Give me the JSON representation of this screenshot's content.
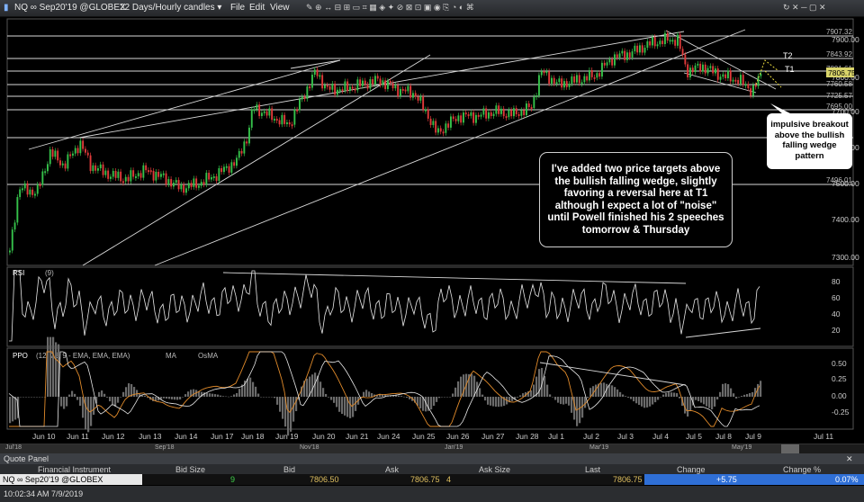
{
  "window": {
    "title": "NQ ∞ Sep20'19 @GLOBEX",
    "timeframe": "22 Days/Hourly candles",
    "menu": [
      "File",
      "Edit",
      "View"
    ]
  },
  "price_chart": {
    "price_labels": [
      "7907.32",
      "7843.92",
      "7801.61",
      "7760.58",
      "7725.57",
      "7695.00",
      "7496.01"
    ],
    "last_price": "7806.75",
    "axis_prices": [
      "7900.00",
      "7800.00",
      "7700.00",
      "7600.00",
      "7500.00",
      "7400.00",
      "7300.00"
    ],
    "target_labels": [
      "T2",
      "T1"
    ],
    "annotation": "I've added two price targets above the bullish falling wedge, slightly favoring a reversal here at T1 although I expect a lot of \"noise\" until Powell finished his 2 speeches tomorrow & Thursday",
    "callout": "impulsive breakout above the bullish falling wedge pattern"
  },
  "rsi": {
    "label": "RSI",
    "params": "(9)",
    "levels": [
      "80",
      "60",
      "40",
      "20"
    ]
  },
  "ppo": {
    "label": "PPO",
    "params": "(12, 26, 9 - EMA, EMA, EMA)",
    "ma_label": "MA",
    "osma_label": "OsMA",
    "levels": [
      "0.50",
      "0.25",
      "0.00",
      "-0.25"
    ]
  },
  "date_axis": [
    "Jun 10",
    "Jun 11",
    "Jun 12",
    "Jun 13",
    "Jun 14",
    "Jun 17",
    "Jun 18",
    "Jun 19",
    "Jun 20",
    "Jun 21",
    "Jun 24",
    "Jun 25",
    "Jun 26",
    "Jun 27",
    "Jun 28",
    "Jul 1",
    "Jul 2",
    "Jul 3",
    "Jul 4",
    "Jul 5",
    "Jul 8",
    "Jul 9",
    "Jul 11"
  ],
  "scroll_axis": [
    "Jul'18",
    "Sep'18",
    "Nov'18",
    "Jan'19",
    "Mar'19",
    "May'19"
  ],
  "quote_panel": {
    "title": "Quote Panel",
    "columns": [
      "Financial Instrument",
      "Bid Size",
      "Bid",
      "Ask",
      "Ask Size",
      "Last",
      "Change",
      "Change %"
    ],
    "row": {
      "instrument": "NQ ∞ Sep20'19 @GLOBEX",
      "bid_size": "9",
      "bid": "7806.50",
      "ask": "7806.75",
      "ask_size": "4",
      "last": "7806.75",
      "change": "+5.75",
      "change_pct": "0.07%"
    }
  },
  "status": {
    "timestamp": "10:02:34 AM 7/9/2019"
  },
  "colors": {
    "up": "#35c14a",
    "down": "#e03a3a",
    "ppo_line": "#e08a2a",
    "change_bg": "#2f6fd6"
  }
}
